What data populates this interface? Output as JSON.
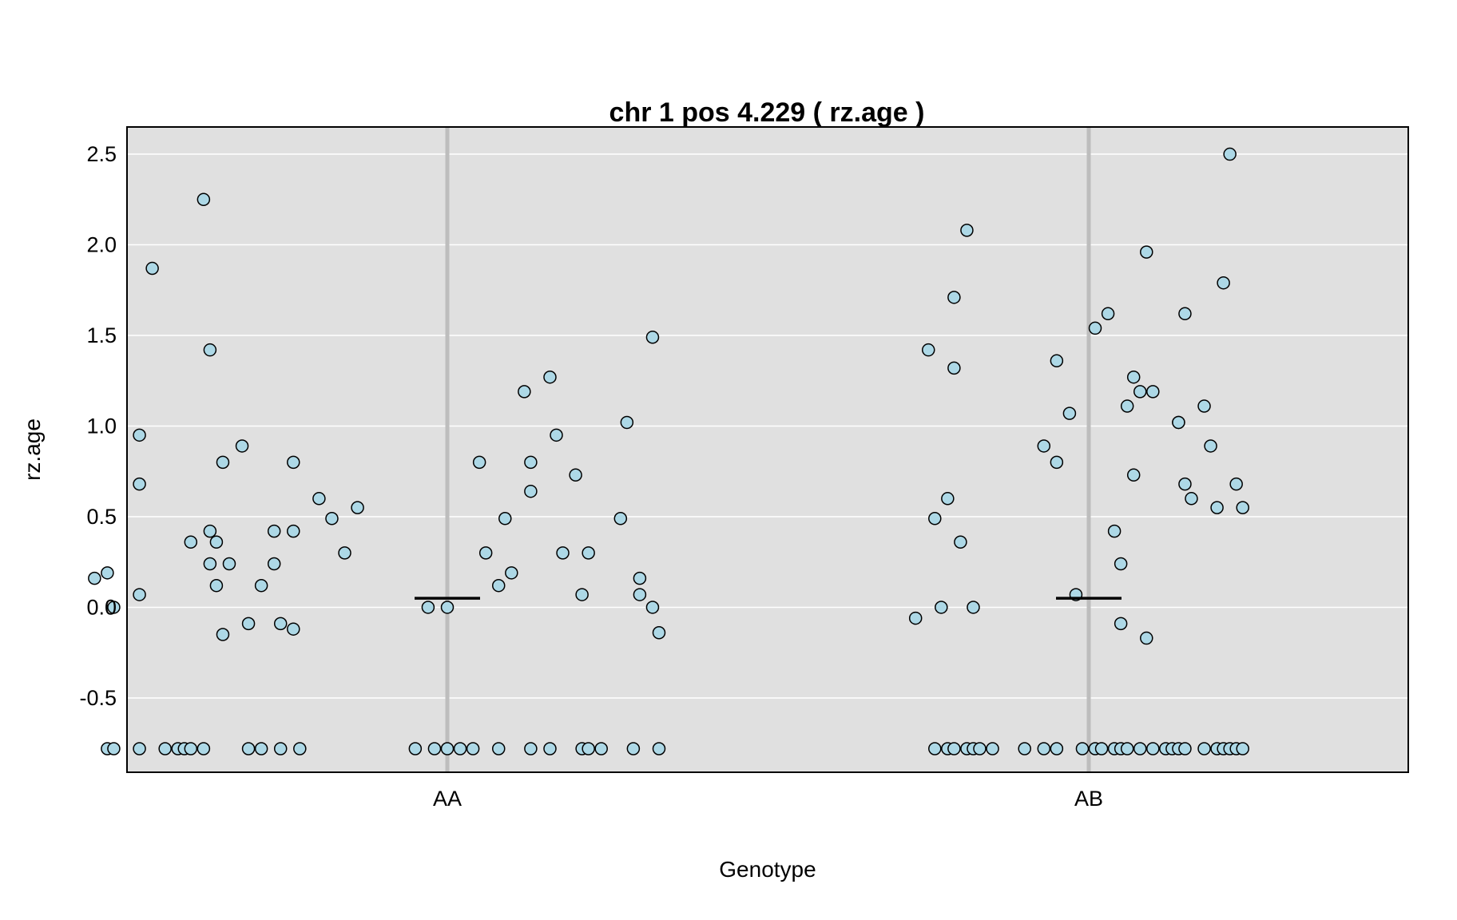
{
  "chart_data": {
    "type": "scatter",
    "title": "chr 1 pos 4.229 ( rz.age )",
    "xlabel": "Genotype",
    "ylabel": "rz.age",
    "categories": [
      "AA",
      "AB"
    ],
    "ylim": [
      -0.91,
      2.65
    ],
    "yticks": [
      -0.5,
      0.0,
      0.5,
      1.0,
      1.5,
      2.0,
      2.5
    ],
    "ytick_labels": [
      "-0.5",
      "0.0",
      "0.5",
      "1.0",
      "1.5",
      "2.0",
      "2.5"
    ],
    "grid": true,
    "colors": {
      "panel": "#e0e0e0",
      "gridline": "#ffffff",
      "category_line": "#bdbdbd",
      "point_fill": "#add8e6",
      "point_stroke": "#000000",
      "mean_line": "#000000"
    },
    "series": [
      {
        "category": "AA",
        "mean": 0.05,
        "points": [
          [
            -0.38,
            2.25
          ],
          [
            -0.46,
            1.87
          ],
          [
            -0.48,
            0.95
          ],
          [
            -0.48,
            0.68
          ],
          [
            -0.32,
            0.89
          ],
          [
            -0.35,
            0.8
          ],
          [
            -0.24,
            0.8
          ],
          [
            -0.37,
            0.42
          ],
          [
            -0.36,
            0.36
          ],
          [
            -0.4,
            0.36
          ],
          [
            -0.36,
            0.12
          ],
          [
            -0.55,
            0.16
          ],
          [
            -0.53,
            0.19
          ],
          [
            -0.48,
            0.07
          ],
          [
            -0.52,
            0.0
          ],
          [
            -0.34,
            0.24
          ],
          [
            -0.37,
            0.24
          ],
          [
            -0.27,
            0.24
          ],
          [
            -0.24,
            0.42
          ],
          [
            -0.27,
            0.42
          ],
          [
            -0.29,
            0.12
          ],
          [
            -0.31,
            -0.09
          ],
          [
            -0.35,
            -0.15
          ],
          [
            -0.26,
            -0.09
          ],
          [
            -0.24,
            -0.12
          ],
          [
            -0.37,
            1.42
          ],
          [
            -0.2,
            0.6
          ],
          [
            -0.18,
            0.49
          ],
          [
            -0.16,
            0.3
          ],
          [
            -0.14,
            0.55
          ],
          [
            -0.03,
            0.0
          ],
          [
            0.0,
            0.0
          ],
          [
            0.05,
            0.8
          ],
          [
            0.06,
            0.3
          ],
          [
            0.08,
            0.12
          ],
          [
            0.09,
            0.49
          ],
          [
            0.1,
            0.19
          ],
          [
            0.12,
            1.19
          ],
          [
            0.13,
            0.8
          ],
          [
            0.13,
            0.64
          ],
          [
            0.16,
            1.27
          ],
          [
            0.17,
            0.95
          ],
          [
            0.2,
            0.73
          ],
          [
            0.18,
            0.3
          ],
          [
            0.22,
            0.3
          ],
          [
            0.21,
            0.07
          ],
          [
            0.27,
            0.49
          ],
          [
            0.28,
            1.02
          ],
          [
            0.3,
            0.16
          ],
          [
            0.3,
            0.07
          ],
          [
            0.32,
            1.49
          ],
          [
            0.33,
            -0.14
          ],
          [
            0.32,
            0.0
          ],
          [
            -0.53,
            -0.78
          ],
          [
            -0.52,
            -0.78
          ],
          [
            -0.48,
            -0.78
          ],
          [
            -0.44,
            -0.78
          ],
          [
            -0.42,
            -0.78
          ],
          [
            -0.41,
            -0.78
          ],
          [
            -0.4,
            -0.78
          ],
          [
            -0.38,
            -0.78
          ],
          [
            -0.31,
            -0.78
          ],
          [
            -0.29,
            -0.78
          ],
          [
            -0.26,
            -0.78
          ],
          [
            -0.23,
            -0.78
          ],
          [
            -0.05,
            -0.78
          ],
          [
            -0.02,
            -0.78
          ],
          [
            0.0,
            -0.78
          ],
          [
            0.02,
            -0.78
          ],
          [
            0.04,
            -0.78
          ],
          [
            0.08,
            -0.78
          ],
          [
            0.13,
            -0.78
          ],
          [
            0.16,
            -0.78
          ],
          [
            0.21,
            -0.78
          ],
          [
            0.22,
            -0.78
          ],
          [
            0.24,
            -0.78
          ],
          [
            0.29,
            -0.78
          ],
          [
            0.33,
            -0.78
          ]
        ]
      },
      {
        "category": "AB",
        "mean": 0.05,
        "points": [
          [
            -0.19,
            2.08
          ],
          [
            -0.21,
            1.71
          ],
          [
            -0.21,
            1.32
          ],
          [
            -0.25,
            1.42
          ],
          [
            -0.24,
            0.49
          ],
          [
            -0.22,
            0.6
          ],
          [
            -0.2,
            0.36
          ],
          [
            -0.27,
            -0.06
          ],
          [
            -0.23,
            0.0
          ],
          [
            -0.18,
            0.0
          ],
          [
            -0.07,
            0.89
          ],
          [
            -0.05,
            1.36
          ],
          [
            -0.03,
            1.07
          ],
          [
            -0.05,
            0.8
          ],
          [
            -0.02,
            0.07
          ],
          [
            0.01,
            1.54
          ],
          [
            0.03,
            1.62
          ],
          [
            0.04,
            0.42
          ],
          [
            0.05,
            0.24
          ],
          [
            0.05,
            -0.09
          ],
          [
            0.06,
            1.11
          ],
          [
            0.07,
            1.27
          ],
          [
            0.07,
            0.73
          ],
          [
            0.08,
            1.19
          ],
          [
            0.09,
            1.96
          ],
          [
            0.09,
            -0.17
          ],
          [
            0.1,
            1.19
          ],
          [
            0.14,
            1.02
          ],
          [
            0.14,
            1.02
          ],
          [
            0.15,
            1.62
          ],
          [
            0.15,
            0.68
          ],
          [
            0.16,
            0.6
          ],
          [
            0.18,
            1.11
          ],
          [
            0.19,
            0.89
          ],
          [
            0.2,
            0.55
          ],
          [
            0.21,
            1.79
          ],
          [
            0.22,
            2.5
          ],
          [
            0.23,
            0.68
          ],
          [
            0.24,
            0.55
          ],
          [
            -0.24,
            -0.78
          ],
          [
            -0.22,
            -0.78
          ],
          [
            -0.21,
            -0.78
          ],
          [
            -0.19,
            -0.78
          ],
          [
            -0.18,
            -0.78
          ],
          [
            -0.17,
            -0.78
          ],
          [
            -0.15,
            -0.78
          ],
          [
            -0.1,
            -0.78
          ],
          [
            -0.07,
            -0.78
          ],
          [
            -0.05,
            -0.78
          ],
          [
            -0.01,
            -0.78
          ],
          [
            0.01,
            -0.78
          ],
          [
            0.02,
            -0.78
          ],
          [
            0.04,
            -0.78
          ],
          [
            0.05,
            -0.78
          ],
          [
            0.06,
            -0.78
          ],
          [
            0.08,
            -0.78
          ],
          [
            0.1,
            -0.78
          ],
          [
            0.12,
            -0.78
          ],
          [
            0.13,
            -0.78
          ],
          [
            0.14,
            -0.78
          ],
          [
            0.15,
            -0.78
          ],
          [
            0.18,
            -0.78
          ],
          [
            0.2,
            -0.78
          ],
          [
            0.21,
            -0.78
          ],
          [
            0.22,
            -0.78
          ],
          [
            0.23,
            -0.78
          ],
          [
            0.24,
            -0.78
          ]
        ]
      }
    ]
  }
}
